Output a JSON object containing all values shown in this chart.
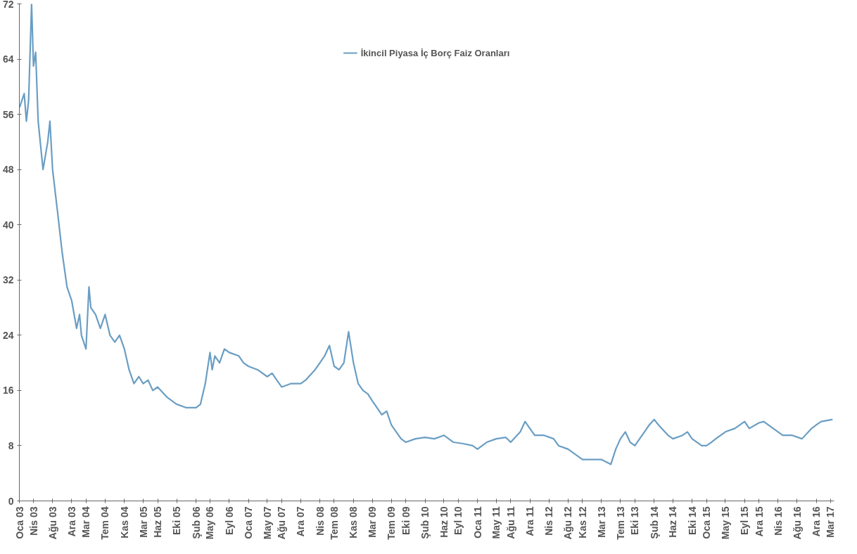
{
  "chart_data": {
    "type": "line",
    "x": [
      "2003-01-02",
      "2003-02-01",
      "2003-02-15",
      "2003-03-01",
      "2003-03-20",
      "2003-04-01",
      "2003-04-15",
      "2003-05-01",
      "2003-06-01",
      "2003-07-01",
      "2003-07-15",
      "2003-08-01",
      "2003-09-01",
      "2003-10-01",
      "2003-11-01",
      "2003-12-01",
      "2004-01-01",
      "2004-01-20",
      "2004-02-01",
      "2004-03-01",
      "2004-03-20",
      "2004-04-01",
      "2004-05-01",
      "2004-06-01",
      "2004-07-01",
      "2004-08-01",
      "2004-09-01",
      "2004-10-01",
      "2004-11-01",
      "2004-12-01",
      "2005-01-01",
      "2005-02-01",
      "2005-03-01",
      "2005-04-01",
      "2005-05-01",
      "2005-06-01",
      "2005-08-01",
      "2005-10-01",
      "2005-12-01",
      "2006-02-01",
      "2006-03-01",
      "2006-04-01",
      "2006-05-01",
      "2006-05-15",
      "2006-06-01",
      "2006-07-01",
      "2006-08-01",
      "2006-09-01",
      "2006-11-01",
      "2006-12-01",
      "2007-01-01",
      "2007-03-01",
      "2007-05-01",
      "2007-06-01",
      "2007-07-01",
      "2007-08-01",
      "2007-10-01",
      "2007-12-01",
      "2008-01-01",
      "2008-03-01",
      "2008-04-01",
      "2008-05-01",
      "2008-06-01",
      "2008-07-01",
      "2008-08-01",
      "2008-09-01",
      "2008-10-01",
      "2008-11-01",
      "2008-12-01",
      "2009-01-01",
      "2009-02-01",
      "2009-03-01",
      "2009-05-01",
      "2009-06-01",
      "2009-07-01",
      "2009-08-01",
      "2009-09-01",
      "2009-10-01",
      "2009-12-01",
      "2010-02-01",
      "2010-04-01",
      "2010-06-01",
      "2010-08-01",
      "2010-10-01",
      "2010-12-01",
      "2011-01-01",
      "2011-03-01",
      "2011-05-01",
      "2011-07-01",
      "2011-08-01",
      "2011-10-01",
      "2011-11-01",
      "2011-12-01",
      "2012-01-01",
      "2012-03-01",
      "2012-05-01",
      "2012-06-01",
      "2012-08-01",
      "2012-10-01",
      "2012-11-01",
      "2013-01-01",
      "2013-03-01",
      "2013-05-01",
      "2013-06-01",
      "2013-07-01",
      "2013-08-01",
      "2013-09-01",
      "2013-10-01",
      "2013-12-01",
      "2014-01-01",
      "2014-02-01",
      "2014-03-01",
      "2014-05-01",
      "2014-06-01",
      "2014-08-01",
      "2014-09-01",
      "2014-10-01",
      "2014-12-01",
      "2015-01-01",
      "2015-02-01",
      "2015-03-01",
      "2015-05-01",
      "2015-07-01",
      "2015-09-01",
      "2015-10-01",
      "2015-12-01",
      "2016-01-01",
      "2016-03-01",
      "2016-05-01",
      "2016-07-01",
      "2016-09-01",
      "2016-11-01",
      "2016-12-01",
      "2017-01-01",
      "2017-03-15"
    ],
    "series": [
      {
        "name": "İkincil Piyasa İç Borç Faiz Oranları",
        "color": "#6a9ec4",
        "values": [
          57,
          59,
          55,
          58,
          72,
          63,
          65,
          55,
          48,
          52,
          55,
          48,
          42,
          36,
          31,
          29,
          25,
          27,
          24,
          22,
          31,
          28,
          27,
          25,
          27,
          24,
          23,
          24,
          22,
          19,
          17,
          18,
          17,
          17.5,
          16,
          16.5,
          15,
          14,
          13.5,
          13.5,
          14,
          17,
          21.5,
          19,
          21,
          20,
          22,
          21.5,
          21,
          20,
          19.5,
          19,
          18,
          18.5,
          17.5,
          16.5,
          17,
          17,
          17.5,
          19,
          20,
          21,
          22.5,
          19.5,
          19,
          20,
          24.5,
          20,
          17,
          16,
          15.5,
          14.5,
          12.5,
          13,
          11,
          10,
          9,
          8.5,
          9,
          9.2,
          9,
          9.5,
          8.5,
          8.3,
          8,
          7.5,
          8.5,
          9,
          9.2,
          8.5,
          10,
          11.5,
          10.5,
          9.5,
          9.5,
          9,
          8,
          7.5,
          6.5,
          6,
          6,
          6,
          5.3,
          7.5,
          9,
          10,
          8.5,
          8,
          10,
          11,
          11.8,
          11,
          9.5,
          9,
          9.5,
          10,
          9,
          8,
          8,
          8.5,
          9,
          10,
          10.5,
          11.5,
          10.5,
          11.3,
          11.5,
          10.5,
          9.5,
          9.5,
          9,
          10.5,
          11,
          11.5,
          11.8
        ]
      }
    ],
    "xlim": [
      "2003-01-01",
      "2017-03-25"
    ],
    "xticks": [
      {
        "value": "2003-01-01",
        "label": "Oca 03"
      },
      {
        "value": "2003-04-01",
        "label": "Nis 03"
      },
      {
        "value": "2003-08-01",
        "label": "Ağu 03"
      },
      {
        "value": "2003-12-01",
        "label": "Ara 03"
      },
      {
        "value": "2004-03-01",
        "label": "Mar 04"
      },
      {
        "value": "2004-07-01",
        "label": "Tem 04"
      },
      {
        "value": "2004-11-01",
        "label": "Kas 04"
      },
      {
        "value": "2005-03-01",
        "label": "Mar 05"
      },
      {
        "value": "2005-06-01",
        "label": "Haz 05"
      },
      {
        "value": "2005-10-01",
        "label": "Eki 05"
      },
      {
        "value": "2006-02-01",
        "label": "Şub 06"
      },
      {
        "value": "2006-05-01",
        "label": "May 06"
      },
      {
        "value": "2006-09-01",
        "label": "Eyl 06"
      },
      {
        "value": "2007-01-01",
        "label": "Oca 07"
      },
      {
        "value": "2007-05-01",
        "label": "May 07"
      },
      {
        "value": "2007-08-01",
        "label": "Ağu 07"
      },
      {
        "value": "2007-12-01",
        "label": "Ara 07"
      },
      {
        "value": "2008-04-01",
        "label": "Nis 08"
      },
      {
        "value": "2008-07-01",
        "label": "Tem 08"
      },
      {
        "value": "2008-11-01",
        "label": "Kas 08"
      },
      {
        "value": "2009-03-01",
        "label": "Mar 09"
      },
      {
        "value": "2009-07-01",
        "label": "Tem 09"
      },
      {
        "value": "2009-10-01",
        "label": "Eki 09"
      },
      {
        "value": "2010-02-01",
        "label": "Şub 10"
      },
      {
        "value": "2010-06-01",
        "label": "Haz 10"
      },
      {
        "value": "2010-09-01",
        "label": "Eyl 10"
      },
      {
        "value": "2011-01-01",
        "label": "Oca 11"
      },
      {
        "value": "2011-05-01",
        "label": "May 11"
      },
      {
        "value": "2011-08-01",
        "label": "Ağu 11"
      },
      {
        "value": "2011-12-01",
        "label": "Ara 11"
      },
      {
        "value": "2012-04-01",
        "label": "Nis 12"
      },
      {
        "value": "2012-08-01",
        "label": "Ağu 12"
      },
      {
        "value": "2012-11-01",
        "label": "Kas 12"
      },
      {
        "value": "2013-03-01",
        "label": "Mar 13"
      },
      {
        "value": "2013-07-01",
        "label": "Tem 13"
      },
      {
        "value": "2013-10-01",
        "label": "Eki 13"
      },
      {
        "value": "2014-02-01",
        "label": "Şub 14"
      },
      {
        "value": "2014-06-01",
        "label": "Haz 14"
      },
      {
        "value": "2014-10-01",
        "label": "Eki 14"
      },
      {
        "value": "2015-01-01",
        "label": "Oca 15"
      },
      {
        "value": "2015-05-01",
        "label": "May 15"
      },
      {
        "value": "2015-09-01",
        "label": "Eyl 15"
      },
      {
        "value": "2015-12-01",
        "label": "Ara 15"
      },
      {
        "value": "2016-04-01",
        "label": "Nis 16"
      },
      {
        "value": "2016-08-01",
        "label": "Ağu 16"
      },
      {
        "value": "2016-12-01",
        "label": "Ara 16"
      },
      {
        "value": "2017-03-01",
        "label": "Mar 17"
      }
    ],
    "ylim": [
      0,
      72
    ],
    "yticks": [
      0,
      8,
      16,
      24,
      32,
      40,
      48,
      56,
      64,
      72
    ],
    "legend": "top"
  }
}
